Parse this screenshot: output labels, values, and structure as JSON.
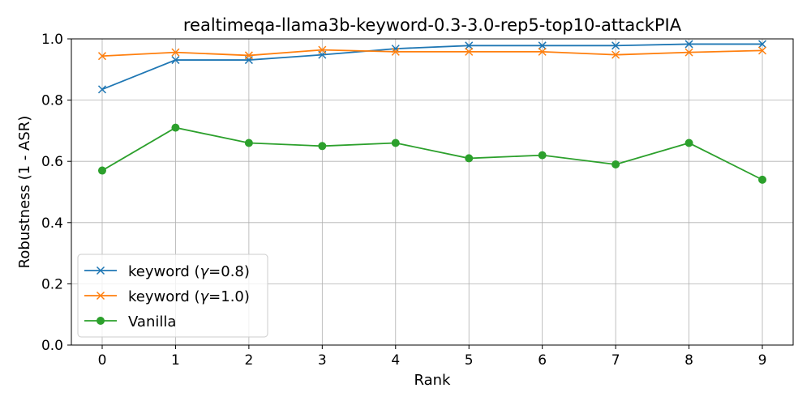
{
  "chart_data": {
    "type": "line",
    "title": "realtimeqa-llama3b-keyword-0.3-3.0-rep5-top10-attackPIA",
    "xlabel": "Rank",
    "ylabel": "Robustness (1 - ASR)",
    "x": [
      0,
      1,
      2,
      3,
      4,
      5,
      6,
      7,
      8,
      9
    ],
    "xticks": [
      "0",
      "1",
      "2",
      "3",
      "4",
      "5",
      "6",
      "7",
      "8",
      "9"
    ],
    "ylim": [
      0.0,
      1.0
    ],
    "yticks": [
      "0.0",
      "0.2",
      "0.4",
      "0.6",
      "0.8",
      "1.0"
    ],
    "grid": true,
    "legend_position": "lower-left",
    "series": [
      {
        "name_prefix": "keyword (",
        "name_symbol": "γ",
        "name_suffix": "=0.8)",
        "color": "#1f77b4",
        "marker": "x",
        "values": [
          0.835,
          0.931,
          0.931,
          0.948,
          0.968,
          0.978,
          0.978,
          0.978,
          0.983,
          0.983
        ]
      },
      {
        "name_prefix": "keyword (",
        "name_symbol": "γ",
        "name_suffix": "=1.0)",
        "color": "#ff7f0e",
        "marker": "x",
        "values": [
          0.944,
          0.956,
          0.946,
          0.964,
          0.958,
          0.958,
          0.958,
          0.948,
          0.956,
          0.962
        ]
      },
      {
        "name_prefix": "Vanilla",
        "name_symbol": "",
        "name_suffix": "",
        "color": "#2ca02c",
        "marker": "o",
        "values": [
          0.57,
          0.71,
          0.66,
          0.65,
          0.66,
          0.61,
          0.62,
          0.59,
          0.66,
          0.54
        ]
      }
    ]
  }
}
